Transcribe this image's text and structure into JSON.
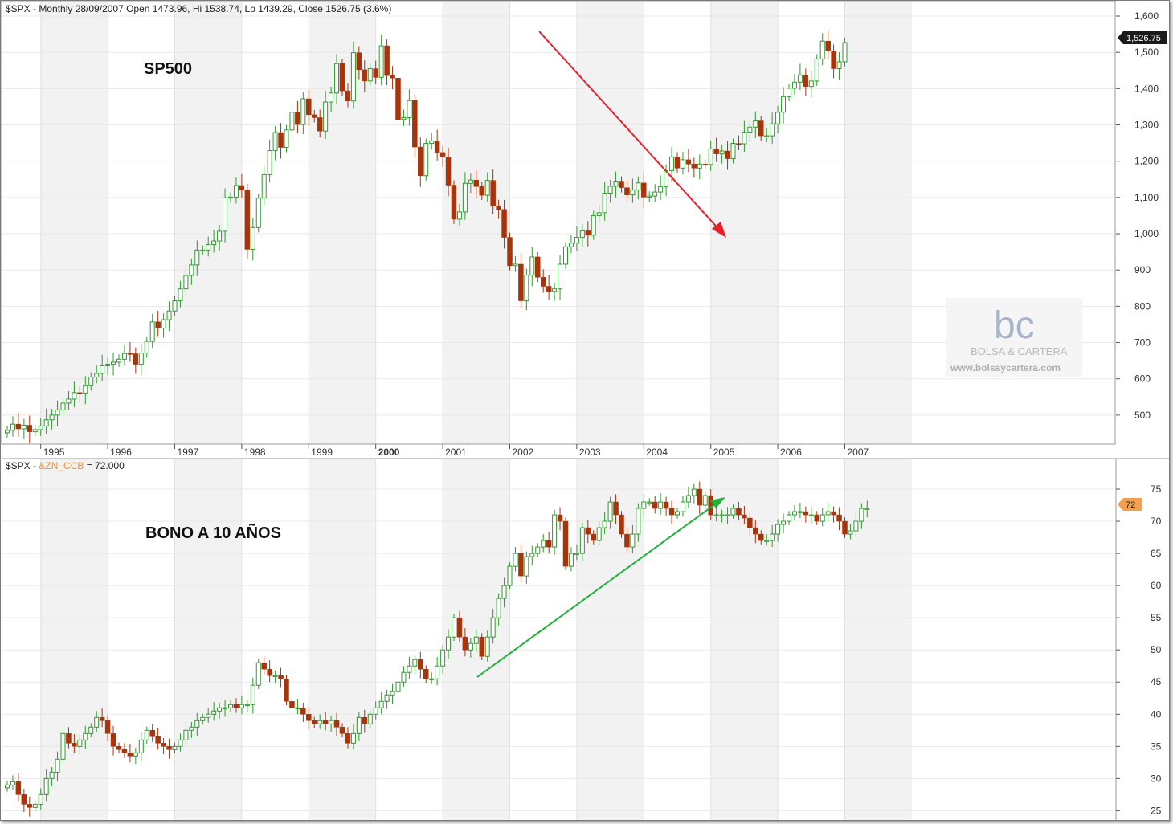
{
  "top_panel": {
    "header": "$SPX - Monthly 28/09/2007 Open 1473.96, Hi 1538.74, Lo 1439.29, Close 1526.75 (3.6%)",
    "label": "SP500",
    "last_value_badge": "1,526.75"
  },
  "bottom_panel": {
    "header_symbol": "$SPX - ",
    "header_overlay": "&ZN_CCB",
    "header_value": " = 72.000",
    "label": "BONO A 10 AÑOS",
    "last_value_badge": "72"
  },
  "watermark": {
    "logo_text": "bc",
    "name": "BOLSA & CARTERA",
    "url": "www.bolsaycartera.com"
  },
  "colors": {
    "up": "#2e9a2e",
    "down": "#a8340c",
    "arrow_down": "#e8202a",
    "arrow_up": "#22b03a",
    "badge_top": "#1a1a1a",
    "badge_bottom": "#f0a050",
    "overlay_label": "#f09030"
  },
  "chart_data": [
    {
      "type": "candlestick",
      "series_name": "$SPX",
      "x_axis_years": [
        "1995",
        "1996",
        "1997",
        "1998",
        "1999",
        "2000",
        "2001",
        "2002",
        "2003",
        "2004",
        "2005",
        "2006",
        "2007"
      ],
      "y_ticks": [
        "1,600",
        "1,500",
        "1,400",
        "1,300",
        "1,200",
        "1,100",
        "1,000",
        "900",
        "800",
        "700",
        "600",
        "500"
      ],
      "ylim": [
        420,
        1620
      ],
      "start": "1994-07",
      "closes": [
        458,
        475,
        462,
        472,
        454,
        460,
        470,
        487,
        500,
        514,
        533,
        544,
        562,
        561,
        581,
        605,
        615,
        636,
        640,
        646,
        654,
        670,
        669,
        640,
        671,
        703,
        757,
        740,
        763,
        787,
        815,
        848,
        885,
        914,
        955,
        955,
        970,
        980,
        1007,
        1099,
        1101,
        1133,
        1120,
        957,
        1017,
        1098,
        1163,
        1229,
        1279,
        1238,
        1286,
        1335,
        1301,
        1372,
        1328,
        1320,
        1283,
        1363,
        1388,
        1469,
        1394,
        1366,
        1499,
        1452,
        1421,
        1455,
        1431,
        1518,
        1436,
        1429,
        1315,
        1320,
        1367,
        1239,
        1160,
        1249,
        1256,
        1224,
        1211,
        1134,
        1040,
        1060,
        1139,
        1148,
        1130,
        1106,
        1147,
        1076,
        1067,
        990,
        912,
        916,
        815,
        886,
        936,
        880,
        855,
        841,
        848,
        916,
        964,
        974,
        990,
        1008,
        996,
        1050,
        1058,
        1112,
        1131,
        1145,
        1127,
        1107,
        1121,
        1140,
        1101,
        1104,
        1115,
        1130,
        1174,
        1212,
        1181,
        1204,
        1192,
        1181,
        1192,
        1191,
        1234,
        1220,
        1228,
        1207,
        1249,
        1248,
        1280,
        1294,
        1311,
        1270,
        1270,
        1303,
        1335,
        1378,
        1401,
        1418,
        1438,
        1406,
        1421,
        1482,
        1531,
        1504,
        1455,
        1474,
        1527
      ],
      "last_close": 1526.75
    },
    {
      "type": "candlestick",
      "series_name": "&ZN_CCB",
      "x_axis_years": [
        "1995",
        "1996",
        "1997",
        "1998",
        "1999",
        "2000",
        "2001",
        "2002",
        "2003",
        "2004",
        "2005",
        "2006",
        "2007"
      ],
      "y_ticks": [
        "75",
        "70",
        "65",
        "60",
        "55",
        "50",
        "45",
        "40",
        "35",
        "30",
        "25"
      ],
      "ylim": [
        23.8,
        77.5
      ],
      "start": "1994-07",
      "closes": [
        29,
        29.5,
        27.5,
        26,
        25.5,
        26,
        27.5,
        30,
        31,
        33,
        37,
        35.5,
        35,
        36,
        37,
        38,
        39.5,
        39,
        37,
        35,
        34.5,
        34,
        33.5,
        34,
        36,
        37.5,
        36.5,
        35.5,
        35,
        34.5,
        35,
        36,
        37.5,
        38,
        39,
        39.5,
        40,
        40.5,
        41,
        41,
        41.5,
        41,
        41.5,
        41.5,
        44.5,
        48,
        47,
        46,
        46,
        45.5,
        42,
        41,
        41,
        40,
        39,
        38.5,
        39,
        38.5,
        39,
        38,
        37,
        35.5,
        37,
        39.5,
        38.5,
        40,
        41,
        42,
        43,
        43.5,
        45,
        46.5,
        47.5,
        48.5,
        47,
        45.5,
        45.5,
        47.5,
        50,
        52,
        55,
        52,
        50,
        51,
        52,
        49,
        52,
        55,
        58,
        60,
        63,
        65,
        61.5,
        64.5,
        65,
        66,
        67,
        66,
        71,
        70,
        63,
        65,
        65,
        69,
        68,
        67,
        69,
        70,
        73,
        71,
        68,
        66,
        68,
        72,
        73,
        73,
        72,
        73,
        72,
        71,
        71.5,
        73,
        74,
        75,
        72.5,
        74,
        71,
        71,
        71,
        71,
        72,
        71,
        70.5,
        69,
        68,
        67,
        67,
        68,
        69.5,
        70,
        71,
        71.5,
        71.5,
        71,
        71,
        70,
        71,
        71.5,
        71,
        70,
        68,
        68.5,
        70,
        72,
        72
      ],
      "last_close": 72.0
    }
  ]
}
